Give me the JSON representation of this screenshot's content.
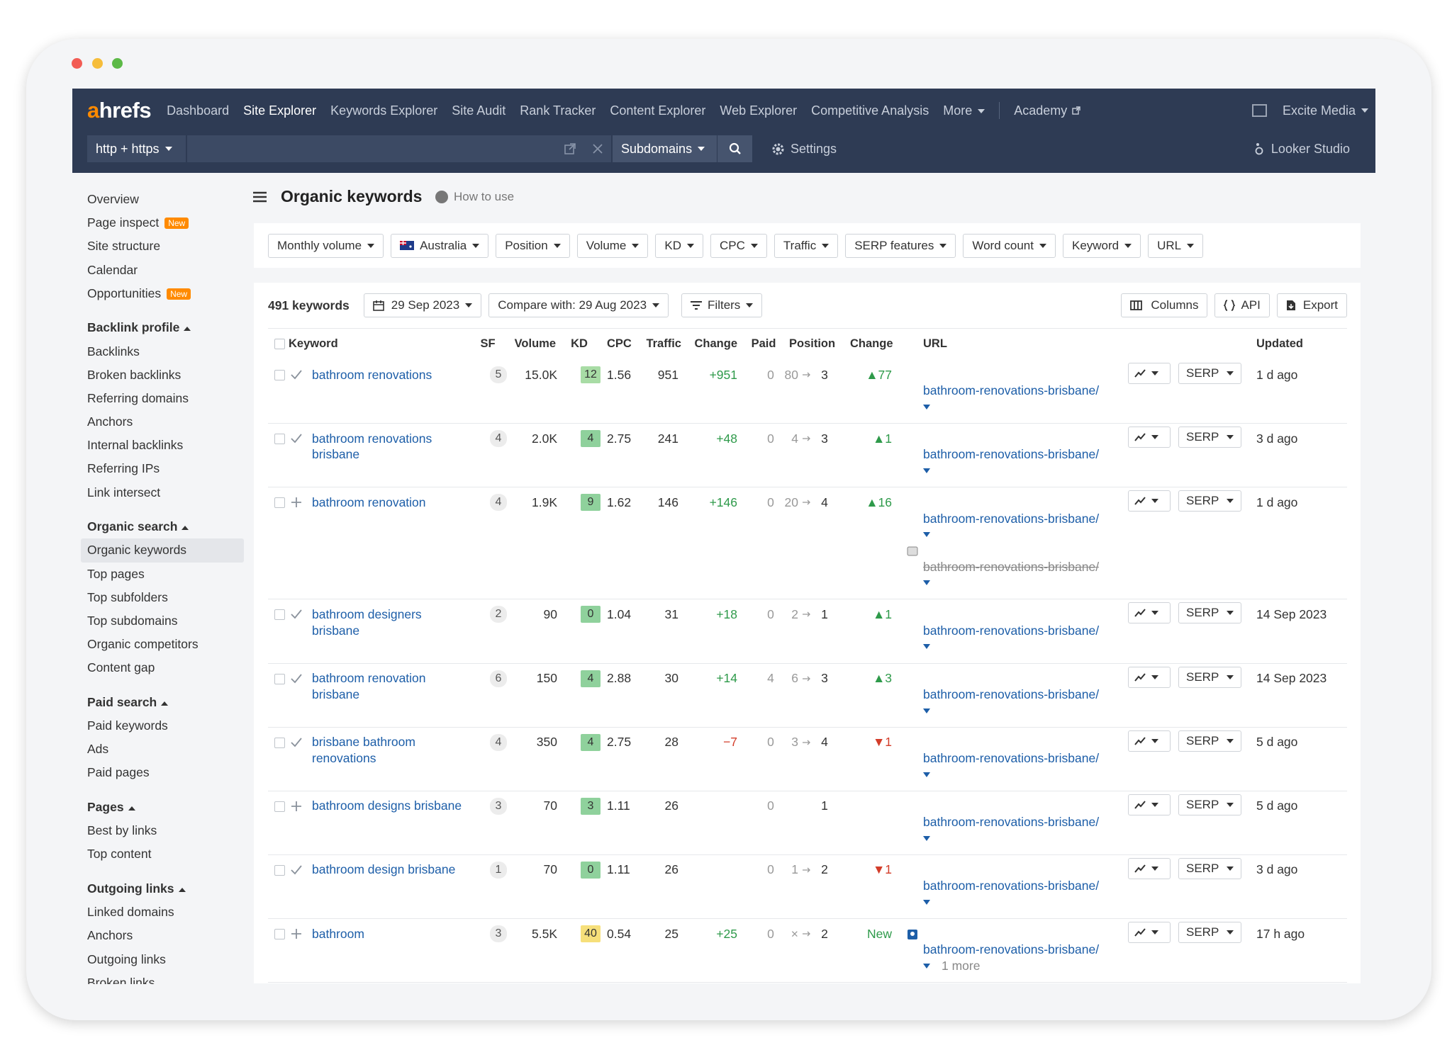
{
  "nav": {
    "logo": "ahrefs",
    "items": [
      "Dashboard",
      "Site Explorer",
      "Keywords Explorer",
      "Site Audit",
      "Rank Tracker",
      "Content Explorer",
      "Web Explorer",
      "Competitive Analysis"
    ],
    "active": 1,
    "more": "More",
    "academy": "Academy",
    "account": "Excite Media",
    "protocol": "http + https",
    "subdomains": "Subdomains",
    "settings": "Settings",
    "looker": "Looker Studio"
  },
  "sidebar": {
    "items": [
      {
        "label": "Overview"
      },
      {
        "label": "Page inspect",
        "badge": "New"
      },
      {
        "label": "Site structure"
      },
      {
        "label": "Calendar"
      },
      {
        "label": "Opportunities",
        "badge": "New"
      }
    ],
    "groups": [
      {
        "title": "Backlink profile",
        "items": [
          "Backlinks",
          "Broken backlinks",
          "Referring domains",
          "Anchors",
          "Internal backlinks",
          "Referring IPs",
          "Link intersect"
        ]
      },
      {
        "title": "Organic search",
        "items": [
          "Organic keywords",
          "Top pages",
          "Top subfolders",
          "Top subdomains",
          "Organic competitors",
          "Content gap"
        ]
      },
      {
        "title": "Paid search",
        "items": [
          "Paid keywords",
          "Ads",
          "Paid pages"
        ]
      },
      {
        "title": "Pages",
        "items": [
          "Best by links",
          "Top content"
        ]
      },
      {
        "title": "Outgoing links",
        "items": [
          "Linked domains",
          "Anchors",
          "Outgoing links",
          "Broken links"
        ]
      }
    ],
    "selected": "Organic keywords"
  },
  "header": {
    "title": "Organic keywords",
    "help": "How to use"
  },
  "filters": [
    "Monthly volume",
    "Australia",
    "Position",
    "Volume",
    "KD",
    "CPC",
    "Traffic",
    "SERP features",
    "Word count",
    "Keyword",
    "URL"
  ],
  "toolbar": {
    "count": "491 keywords",
    "date": "29 Sep 2023",
    "compare": "Compare with: 29 Aug 2023",
    "filters": "Filters",
    "columns": "Columns",
    "api": "API",
    "export": "Export"
  },
  "table": {
    "headers": [
      "Keyword",
      "SF",
      "Volume",
      "KD",
      "CPC",
      "Traffic",
      "Change",
      "Paid",
      "Position",
      "Change",
      "URL",
      "Updated"
    ],
    "serp_label": "SERP",
    "rows": [
      {
        "icon": "check",
        "keyword": "bathroom renovations",
        "sf": 5,
        "volume": "15.0K",
        "kd": 12,
        "cpc": 1.56,
        "traffic": 951,
        "change": "+951",
        "paid": 0,
        "pos_from": 80,
        "pos_to": 3,
        "pos_change": "▲77",
        "url": "bathroom-renovations-brisbane/",
        "updated": "1 d ago"
      },
      {
        "icon": "check",
        "keyword": "bathroom renovations brisbane",
        "sf": 4,
        "volume": "2.0K",
        "kd": 4,
        "cpc": 2.75,
        "traffic": 241,
        "change": "+48",
        "paid": 0,
        "pos_from": 4,
        "pos_to": 3,
        "pos_change": "▲1",
        "url": "bathroom-renovations-brisbane/",
        "updated": "3 d ago"
      },
      {
        "icon": "plus",
        "keyword": "bathroom renovation",
        "sf": 4,
        "volume": "1.9K",
        "kd": 9,
        "cpc": 1.62,
        "traffic": 146,
        "change": "+146",
        "paid": 0,
        "pos_from": 20,
        "pos_to": 4,
        "pos_change": "▲16",
        "url": "bathroom-renovations-brisbane/",
        "old_url": "bathroom-renovations-brisbane/",
        "updated": "1 d ago"
      },
      {
        "icon": "check",
        "keyword": "bathroom designers brisbane",
        "sf": 2,
        "volume": "90",
        "kd": 0,
        "cpc": 1.04,
        "traffic": 31,
        "change": "+18",
        "paid": 0,
        "pos_from": 2,
        "pos_to": 1,
        "pos_change": "▲1",
        "url": "bathroom-renovations-brisbane/",
        "updated": "14 Sep 2023"
      },
      {
        "icon": "check",
        "keyword": "bathroom renovation brisbane",
        "sf": 6,
        "volume": "150",
        "kd": 4,
        "cpc": 2.88,
        "traffic": 30,
        "change": "+14",
        "paid": 4,
        "pos_from": 6,
        "pos_to": 3,
        "pos_change": "▲3",
        "url": "bathroom-renovations-brisbane/",
        "updated": "14 Sep 2023"
      },
      {
        "icon": "check",
        "keyword": "brisbane bathroom renovations",
        "sf": 4,
        "volume": "350",
        "kd": 4,
        "cpc": 2.75,
        "traffic": 28,
        "change": "−7",
        "paid": 0,
        "pos_from": 3,
        "pos_to": 4,
        "pos_change": "▼1",
        "url": "bathroom-renovations-brisbane/",
        "updated": "5 d ago"
      },
      {
        "icon": "plus",
        "keyword": "bathroom designs brisbane",
        "sf": 3,
        "volume": "70",
        "kd": 3,
        "cpc": 1.11,
        "traffic": 26,
        "change": null,
        "paid": 0,
        "pos_from": null,
        "pos_to": 1,
        "pos_change": null,
        "url": "bathroom-renovations-brisbane/",
        "updated": "5 d ago"
      },
      {
        "icon": "check",
        "keyword": "bathroom design brisbane",
        "sf": 1,
        "volume": "70",
        "kd": 0,
        "cpc": 1.11,
        "traffic": 26,
        "change": null,
        "paid": 0,
        "pos_from": 1,
        "pos_to": 2,
        "pos_change": "▼1",
        "url": "bathroom-renovations-brisbane/",
        "updated": "3 d ago"
      },
      {
        "icon": "plus",
        "keyword": "bathroom",
        "sf": 3,
        "volume": "5.5K",
        "kd": 40,
        "cpc": 0.54,
        "traffic": 25,
        "change": "+25",
        "paid": 0,
        "pos_from": "×",
        "pos_to": 2,
        "pos_change": "New",
        "url": "bathroom-renovations-brisbane/",
        "more": "1 more",
        "updated": "17 h ago"
      }
    ]
  }
}
